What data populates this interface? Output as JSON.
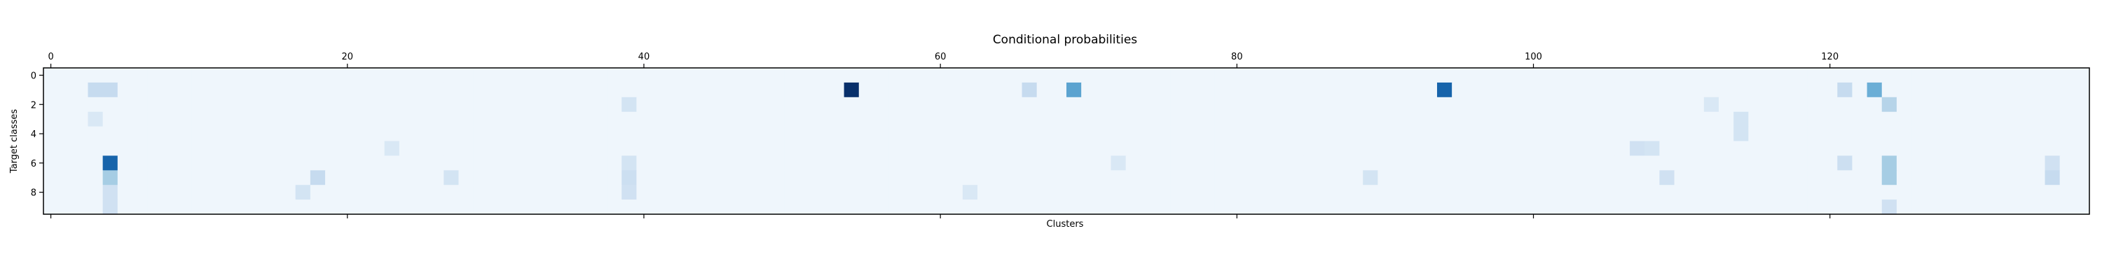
{
  "chart_data": {
    "type": "heatmap",
    "title": "Conditional probabilities",
    "xlabel": "Clusters",
    "ylabel": "Target classes",
    "x_range": [
      0,
      138
    ],
    "y_range": [
      0,
      9
    ],
    "colormap": "Blues",
    "value_range": [
      0,
      1
    ],
    "x_ticks_top": [
      "0",
      "20",
      "40",
      "60",
      "80",
      "100",
      "120"
    ],
    "x_ticks_bottom_labeled": false,
    "y_ticks": [
      "0",
      "2",
      "4",
      "6",
      "8"
    ],
    "background_level": 0.04,
    "cells": [
      {
        "row": 1,
        "col": 54,
        "value": 1.0
      },
      {
        "row": 1,
        "col": 69,
        "value": 0.55
      },
      {
        "row": 1,
        "col": 94,
        "value": 0.8
      },
      {
        "row": 1,
        "col": 123,
        "value": 0.5
      },
      {
        "row": 1,
        "col": 3,
        "value": 0.25
      },
      {
        "row": 1,
        "col": 4,
        "value": 0.25
      },
      {
        "row": 1,
        "col": 66,
        "value": 0.25
      },
      {
        "row": 1,
        "col": 121,
        "value": 0.25
      },
      {
        "row": 6,
        "col": 4,
        "value": 0.8
      },
      {
        "row": 7,
        "col": 4,
        "value": 0.35
      },
      {
        "row": 8,
        "col": 4,
        "value": 0.2
      },
      {
        "row": 9,
        "col": 4,
        "value": 0.2
      },
      {
        "row": 6,
        "col": 124,
        "value": 0.35
      },
      {
        "row": 7,
        "col": 124,
        "value": 0.35
      },
      {
        "row": 2,
        "col": 124,
        "value": 0.3
      },
      {
        "row": 7,
        "col": 18,
        "value": 0.25
      },
      {
        "row": 7,
        "col": 39,
        "value": 0.22
      },
      {
        "row": 6,
        "col": 121,
        "value": 0.22
      },
      {
        "row": 8,
        "col": 39,
        "value": 0.2
      },
      {
        "row": 6,
        "col": 39,
        "value": 0.18
      },
      {
        "row": 2,
        "col": 39,
        "value": 0.18
      },
      {
        "row": 7,
        "col": 135,
        "value": 0.25
      },
      {
        "row": 6,
        "col": 135,
        "value": 0.2
      },
      {
        "row": 7,
        "col": 109,
        "value": 0.2
      },
      {
        "row": 5,
        "col": 107,
        "value": 0.2
      },
      {
        "row": 5,
        "col": 108,
        "value": 0.18
      },
      {
        "row": 3,
        "col": 114,
        "value": 0.18
      },
      {
        "row": 4,
        "col": 114,
        "value": 0.18
      },
      {
        "row": 8,
        "col": 17,
        "value": 0.18
      },
      {
        "row": 7,
        "col": 27,
        "value": 0.18
      },
      {
        "row": 3,
        "col": 3,
        "value": 0.15
      },
      {
        "row": 9,
        "col": 124,
        "value": 0.2
      },
      {
        "row": 6,
        "col": 72,
        "value": 0.15
      },
      {
        "row": 5,
        "col": 23,
        "value": 0.15
      },
      {
        "row": 8,
        "col": 62,
        "value": 0.15
      },
      {
        "row": 7,
        "col": 89,
        "value": 0.18
      },
      {
        "row": 2,
        "col": 112,
        "value": 0.15
      }
    ]
  }
}
